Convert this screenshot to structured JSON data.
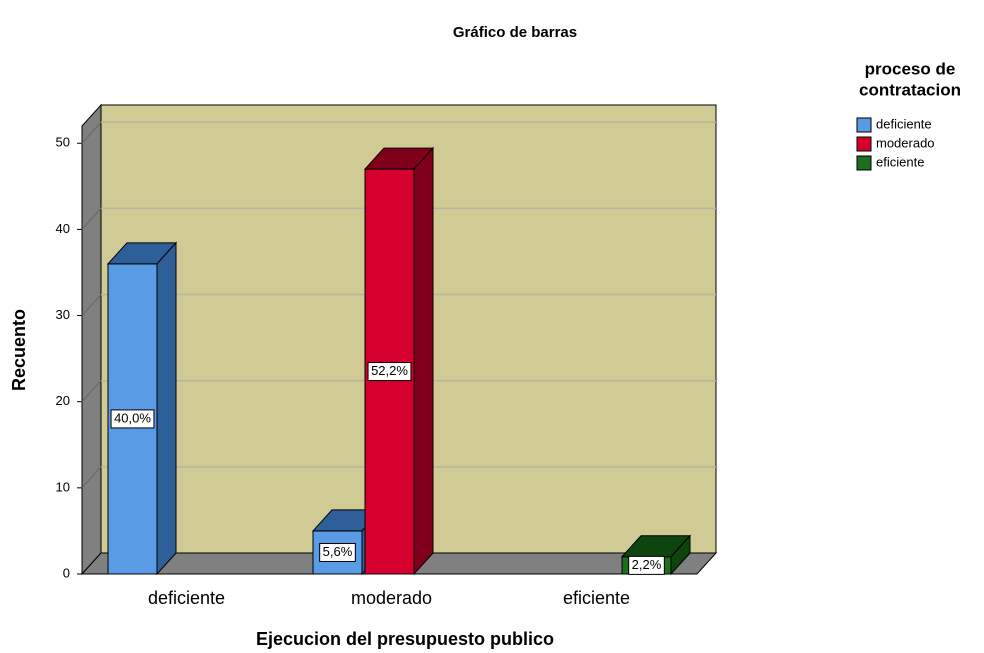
{
  "chart_data": {
    "type": "bar3d",
    "title": "Gráfico de barras",
    "x_label": "Ejecucion del presupuesto publico",
    "y_label": "Recuento",
    "legend_title": [
      "proceso de",
      "contratacion"
    ],
    "categories": [
      "deficiente",
      "moderado",
      "eficiente"
    ],
    "series": [
      {
        "name": "deficiente",
        "color": "#5a9be6",
        "side_color": "#2f5f99",
        "values": [
          36,
          5,
          null
        ],
        "value_labels": [
          "40,0%",
          "5,6%",
          null
        ]
      },
      {
        "name": "moderado",
        "color": "#d6002e",
        "side_color": "#80001c",
        "values": [
          null,
          47,
          null
        ],
        "value_labels": [
          null,
          "52,2%",
          null
        ]
      },
      {
        "name": "eficiente",
        "color": "#1e6e1e",
        "side_color": "#0e440e",
        "values": [
          null,
          null,
          2
        ],
        "value_labels": [
          null,
          null,
          "2,2%"
        ]
      }
    ],
    "ylim": [
      0,
      52
    ],
    "yticks": [
      0,
      10,
      20,
      30,
      40,
      50
    ],
    "grid": true,
    "wall_color": "#d0ca94",
    "legend_position": "upper right"
  }
}
